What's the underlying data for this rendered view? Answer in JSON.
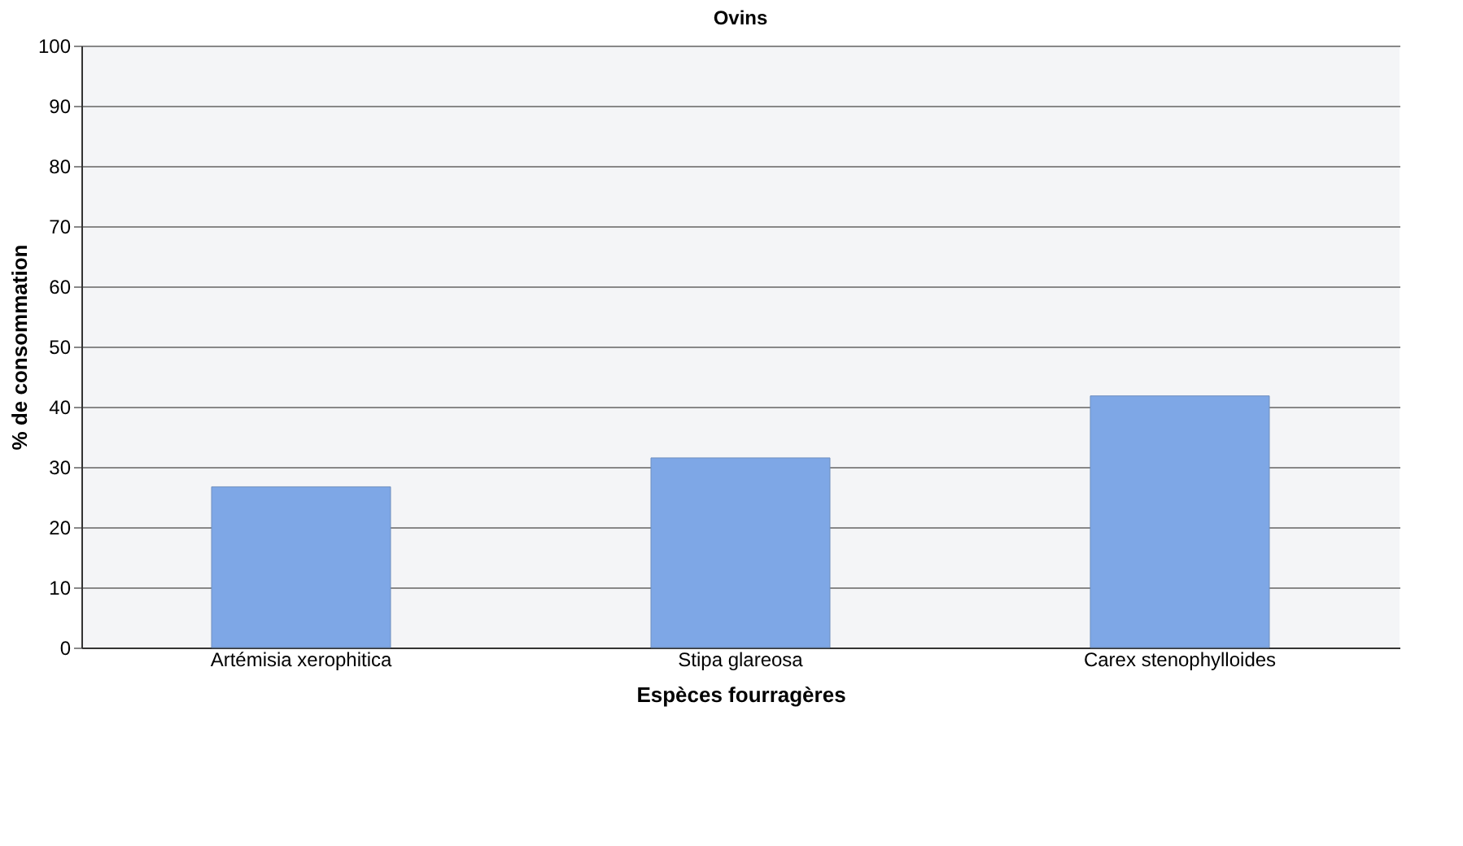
{
  "chart_data": {
    "type": "bar",
    "title": "Ovins",
    "xlabel": "Espèces fourragères",
    "ylabel": "% de consommation",
    "categories": [
      "Artémisia xerophitica",
      "Stipa glareosa",
      "Carex stenophylloides"
    ],
    "values": [
      26.7,
      31.5,
      41.8
    ],
    "color": "#7ea7e6",
    "ylim": [
      0,
      100
    ],
    "yticks": [
      0,
      10,
      20,
      30,
      40,
      50,
      60,
      70,
      80,
      90,
      100
    ],
    "grid": "y"
  }
}
